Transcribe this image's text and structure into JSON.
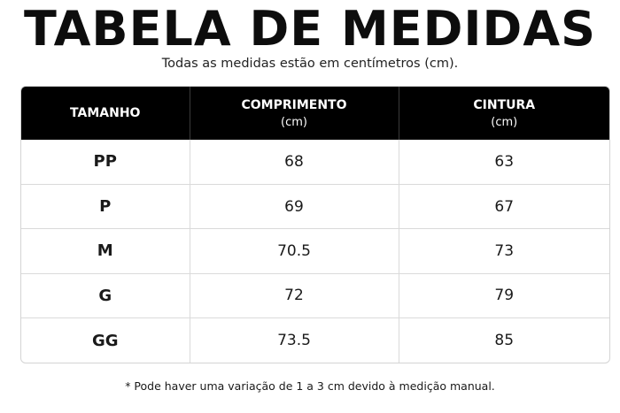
{
  "title": "TABELA DE MEDIDAS",
  "subtitle": "Todas as medidas estão em centímetros (cm).",
  "table": {
    "headers": [
      {
        "label": "TAMANHO",
        "unit": ""
      },
      {
        "label": "COMPRIMENTO",
        "unit": "(cm)"
      },
      {
        "label": "CINTURA",
        "unit": "(cm)"
      }
    ],
    "rows": [
      {
        "size": "PP",
        "comprimento": "68",
        "cintura": "63"
      },
      {
        "size": "P",
        "comprimento": "69",
        "cintura": "67"
      },
      {
        "size": "M",
        "comprimento": "70.5",
        "cintura": "73"
      },
      {
        "size": "G",
        "comprimento": "72",
        "cintura": "79"
      },
      {
        "size": "GG",
        "comprimento": "73.5",
        "cintura": "85"
      }
    ]
  },
  "note": "* Pode haver uma variação de 1 a 3 cm devido à medição manual.",
  "colors": {
    "header_bg": "#000000",
    "header_text": "#ffffff",
    "border": "#dadada"
  }
}
